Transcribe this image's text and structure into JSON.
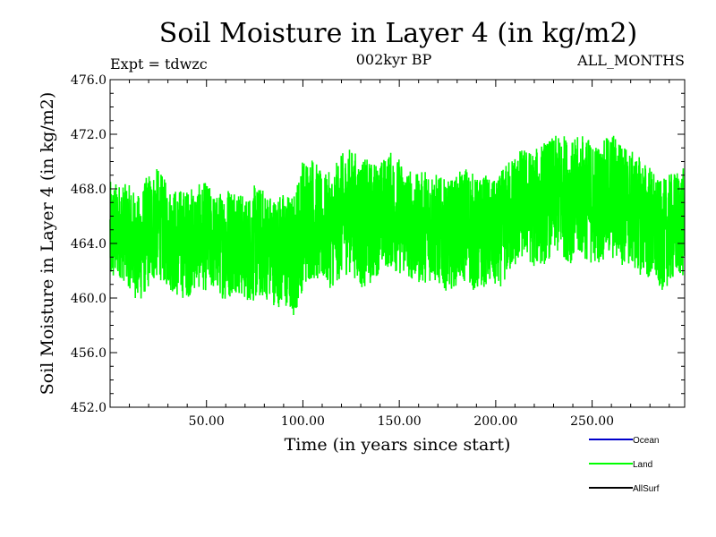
{
  "chart_data": {
    "type": "line",
    "title": "Soil Moisture in Layer 4 (in kg/m2)",
    "subtitle_left": "Expt = tdwzc",
    "subtitle_center": "002kyr BP",
    "subtitle_right": "ALL_MONTHS",
    "xlabel": "Time (in years since start)",
    "ylabel": "Soil Moisture in Layer 4 (in kg/m2)",
    "xlim": [
      0,
      298
    ],
    "ylim": [
      452.0,
      476.0
    ],
    "xticks": [
      50,
      100,
      150,
      200,
      250
    ],
    "xtick_labels": [
      "50.00",
      "100.00",
      "150.00",
      "200.00",
      "250.00"
    ],
    "yticks": [
      452.0,
      456.0,
      460.0,
      464.0,
      468.0,
      472.0,
      476.0
    ],
    "ytick_labels": [
      "452.0",
      "456.0",
      "460.0",
      "464.0",
      "468.0",
      "472.0",
      "476.0"
    ],
    "grid": false,
    "legend_position": "bottom-right, below plot",
    "series": [
      {
        "name": "Ocean",
        "color": "#0000cc",
        "x": [],
        "y": []
      },
      {
        "name": "Land",
        "color": "#00ff00",
        "x": [
          0,
          5,
          10,
          15,
          20,
          25,
          30,
          35,
          40,
          45,
          50,
          55,
          60,
          65,
          70,
          75,
          80,
          85,
          90,
          95,
          100,
          105,
          110,
          115,
          120,
          125,
          130,
          135,
          140,
          145,
          150,
          155,
          160,
          165,
          170,
          175,
          180,
          185,
          190,
          195,
          200,
          205,
          210,
          215,
          220,
          225,
          230,
          235,
          240,
          245,
          250,
          255,
          260,
          265,
          270,
          275,
          280,
          285,
          290,
          295
        ],
        "y": [
          464.5,
          465.0,
          464.5,
          463.5,
          465.0,
          465.5,
          464.5,
          464.0,
          464.0,
          464.5,
          464.5,
          464.0,
          464.0,
          464.5,
          463.5,
          464.0,
          464.0,
          463.5,
          463.5,
          463.0,
          465.5,
          466.0,
          465.0,
          465.0,
          466.0,
          466.5,
          465.5,
          465.5,
          466.0,
          466.5,
          466.0,
          465.5,
          465.0,
          465.5,
          465.0,
          464.5,
          465.0,
          465.5,
          464.5,
          465.0,
          464.5,
          465.5,
          466.5,
          467.0,
          466.5,
          467.0,
          467.5,
          467.5,
          467.0,
          467.5,
          467.0,
          467.0,
          467.5,
          467.0,
          466.5,
          466.0,
          465.5,
          464.5,
          465.0,
          465.5
        ],
        "amplitude": [
          3.0,
          2.6,
          2.8,
          3.0,
          3.2,
          3.0,
          2.8,
          3.0,
          3.0,
          2.8,
          3.0,
          2.6,
          3.2,
          3.0,
          2.8,
          3.2,
          3.0,
          3.0,
          3.2,
          3.4,
          3.6,
          3.4,
          3.0,
          3.2,
          3.4,
          3.4,
          3.6,
          3.4,
          3.0,
          3.2,
          3.2,
          3.0,
          3.0,
          3.2,
          3.0,
          3.0,
          3.0,
          3.2,
          3.2,
          3.0,
          3.0,
          3.2,
          3.2,
          3.0,
          3.2,
          3.4,
          3.2,
          3.4,
          3.4,
          3.4,
          3.4,
          3.2,
          3.6,
          3.4,
          3.2,
          3.2,
          3.2,
          3.0,
          3.0,
          3.0
        ]
      },
      {
        "name": "AllSurf",
        "color": "#000000",
        "x": [],
        "y": []
      }
    ]
  }
}
